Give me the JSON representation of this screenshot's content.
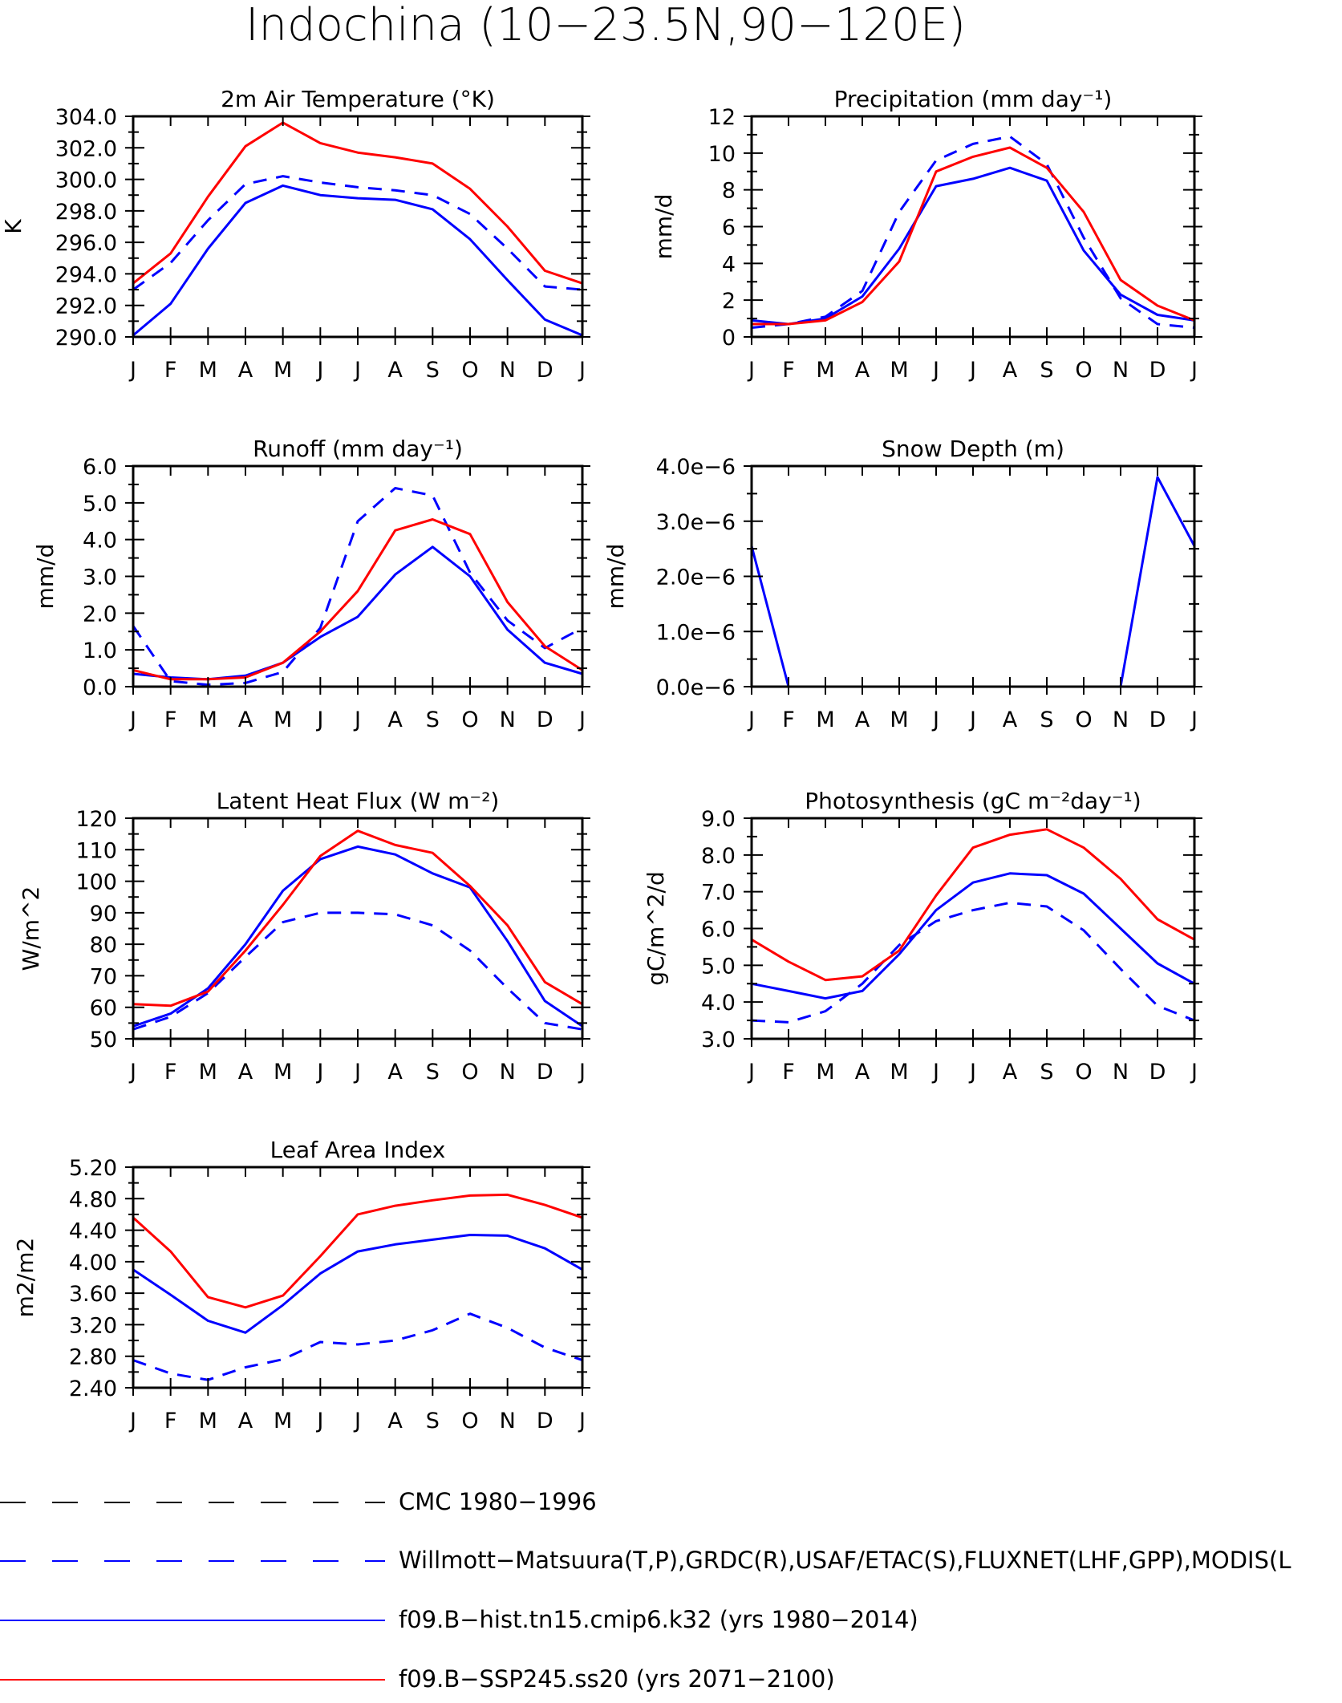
{
  "figure": {
    "title": "Indochina (10−23.5N,90−120E)"
  },
  "colors": {
    "axis": "#000000",
    "blue": "#0000ff",
    "red": "#ff0000",
    "black": "#000000"
  },
  "months": [
    "J",
    "F",
    "M",
    "A",
    "M",
    "J",
    "J",
    "A",
    "S",
    "O",
    "N",
    "D",
    "J"
  ],
  "legend": [
    {
      "label": "CMC 1980−1996",
      "color": "#000000",
      "dash": true
    },
    {
      "label": "Willmott−Matsuura(T,P),GRDC(R),USAF/ETAC(S),FLUXNET(LHF,GPP),MODIS(L",
      "color": "#0000ff",
      "dash": true
    },
    {
      "label": "f09.B−hist.tn15.cmip6.k32 (yrs 1980−2014)",
      "color": "#0000ff",
      "dash": false
    },
    {
      "label": "f09.B−SSP245.ss20 (yrs 2071−2100)",
      "color": "#ff0000",
      "dash": false
    }
  ],
  "chart_data": [
    {
      "type": "line",
      "title": "2m Air Temperature (°K)",
      "ylabel": "K",
      "ylim": [
        290,
        304
      ],
      "yticks": [
        290,
        292,
        294,
        296,
        298,
        300,
        302,
        304
      ],
      "ytick_labels": [
        "290.0",
        "292.0",
        "294.0",
        "296.0",
        "298.0",
        "300.0",
        "302.0",
        "304.0"
      ],
      "x": [
        "J",
        "F",
        "M",
        "A",
        "M",
        "J",
        "J",
        "A",
        "S",
        "O",
        "N",
        "D",
        "J"
      ],
      "series": [
        {
          "style": "blue-dash",
          "values": [
            293.0,
            294.7,
            297.4,
            299.7,
            300.2,
            299.8,
            299.5,
            299.3,
            299.0,
            297.8,
            295.6,
            293.2,
            293.0
          ]
        },
        {
          "style": "blue-solid",
          "values": [
            290.1,
            292.1,
            295.6,
            298.5,
            299.6,
            299.0,
            298.8,
            298.7,
            298.1,
            296.2,
            293.6,
            291.1,
            290.1
          ]
        },
        {
          "style": "red-solid",
          "values": [
            293.4,
            295.3,
            298.9,
            302.1,
            303.6,
            302.3,
            301.7,
            301.4,
            301.0,
            299.4,
            297.0,
            294.2,
            293.4
          ]
        }
      ]
    },
    {
      "type": "line",
      "title": "Precipitation (mm day⁻¹)",
      "ylabel": "mm/d",
      "ylim": [
        0,
        12
      ],
      "yticks": [
        0,
        2,
        4,
        6,
        8,
        10,
        12
      ],
      "ytick_labels": [
        "0",
        "2",
        "4",
        "6",
        "8",
        "10",
        "12"
      ],
      "x": [
        "J",
        "F",
        "M",
        "A",
        "M",
        "J",
        "J",
        "A",
        "S",
        "O",
        "N",
        "D",
        "J"
      ],
      "series": [
        {
          "style": "blue-dash",
          "values": [
            0.5,
            0.7,
            1.1,
            2.5,
            6.8,
            9.6,
            10.5,
            10.9,
            9.4,
            5.4,
            2.1,
            0.7,
            0.5
          ]
        },
        {
          "style": "blue-solid",
          "values": [
            0.9,
            0.7,
            1.0,
            2.2,
            4.8,
            8.2,
            8.6,
            9.2,
            8.5,
            4.7,
            2.3,
            1.2,
            0.9
          ]
        },
        {
          "style": "red-solid",
          "values": [
            0.7,
            0.7,
            0.9,
            1.9,
            4.1,
            9.0,
            9.8,
            10.3,
            9.2,
            6.8,
            3.1,
            1.7,
            0.9
          ]
        }
      ]
    },
    {
      "type": "line",
      "title": "Runoff (mm day⁻¹)",
      "ylabel": "mm/d",
      "ylim": [
        0,
        6
      ],
      "yticks": [
        0,
        1,
        2,
        3,
        4,
        5,
        6
      ],
      "ytick_labels": [
        "0.0",
        "1.0",
        "2.0",
        "3.0",
        "4.0",
        "5.0",
        "6.0"
      ],
      "x": [
        "J",
        "F",
        "M",
        "A",
        "M",
        "J",
        "J",
        "A",
        "S",
        "O",
        "N",
        "D",
        "J"
      ],
      "series": [
        {
          "style": "blue-dash",
          "values": [
            1.65,
            0.15,
            0.05,
            0.1,
            0.4,
            1.6,
            4.5,
            5.4,
            5.2,
            3.1,
            1.8,
            1.05,
            1.6
          ]
        },
        {
          "style": "blue-solid",
          "values": [
            0.35,
            0.25,
            0.2,
            0.3,
            0.65,
            1.35,
            1.9,
            3.05,
            3.8,
            3.0,
            1.55,
            0.65,
            0.35
          ]
        },
        {
          "style": "red-solid",
          "values": [
            0.45,
            0.2,
            0.2,
            0.25,
            0.65,
            1.5,
            2.6,
            4.25,
            4.55,
            4.15,
            2.3,
            1.1,
            0.45
          ]
        }
      ]
    },
    {
      "type": "line",
      "title": "Snow Depth (m)",
      "ylabel": "mm/d",
      "ylim": [
        0,
        4e-06
      ],
      "yticks": [
        0,
        1e-06,
        2e-06,
        3e-06,
        4e-06
      ],
      "ytick_labels": [
        "0.0e−6",
        "1.0e−6",
        "2.0e−6",
        "3.0e−6",
        "4.0e−6"
      ],
      "x": [
        "J",
        "F",
        "M",
        "A",
        "M",
        "J",
        "J",
        "A",
        "S",
        "O",
        "N",
        "D",
        "J"
      ],
      "series": [
        {
          "style": "red-solid",
          "values": [
            0,
            0,
            0,
            0,
            0,
            0,
            0,
            0,
            0,
            0,
            0,
            0,
            0
          ]
        },
        {
          "style": "blue-solid",
          "values": [
            2.55e-06,
            0,
            0,
            0,
            0,
            0,
            0,
            0,
            0,
            0,
            0,
            3.8e-06,
            2.55e-06
          ]
        }
      ]
    },
    {
      "type": "line",
      "title": "Latent Heat Flux (W m⁻²)",
      "ylabel": "W/m^2",
      "ylim": [
        50,
        120
      ],
      "yticks": [
        50,
        60,
        70,
        80,
        90,
        100,
        110,
        120
      ],
      "ytick_labels": [
        "50",
        "60",
        "70",
        "80",
        "90",
        "100",
        "110",
        "120"
      ],
      "x": [
        "J",
        "F",
        "M",
        "A",
        "M",
        "J",
        "J",
        "A",
        "S",
        "O",
        "N",
        "D",
        "J"
      ],
      "series": [
        {
          "style": "blue-dash",
          "values": [
            53,
            57,
            64.5,
            76,
            87,
            90,
            90,
            89.5,
            86,
            78,
            66,
            55,
            53
          ]
        },
        {
          "style": "blue-solid",
          "values": [
            54,
            58,
            66,
            80,
            97,
            107,
            111,
            108.5,
            102.5,
            98,
            81,
            62,
            54
          ]
        },
        {
          "style": "red-solid",
          "values": [
            61,
            60.5,
            65,
            78,
            92.5,
            108,
            116,
            111.5,
            109,
            98.5,
            86,
            68,
            61
          ]
        }
      ]
    },
    {
      "type": "line",
      "title": "Photosynthesis (gC m⁻²day⁻¹)",
      "ylabel": "gC/m^2/d",
      "ylim": [
        3,
        9
      ],
      "yticks": [
        3,
        4,
        5,
        6,
        7,
        8,
        9
      ],
      "ytick_labels": [
        "3.0",
        "4.0",
        "5.0",
        "6.0",
        "7.0",
        "8.0",
        "9.0"
      ],
      "x": [
        "J",
        "F",
        "M",
        "A",
        "M",
        "J",
        "J",
        "A",
        "S",
        "O",
        "N",
        "D",
        "J"
      ],
      "series": [
        {
          "style": "blue-dash",
          "values": [
            3.5,
            3.45,
            3.75,
            4.5,
            5.55,
            6.2,
            6.5,
            6.7,
            6.6,
            5.95,
            4.9,
            3.9,
            3.5
          ]
        },
        {
          "style": "blue-solid",
          "values": [
            4.5,
            4.3,
            4.1,
            4.3,
            5.3,
            6.5,
            7.25,
            7.5,
            7.45,
            6.95,
            6.0,
            5.05,
            4.5
          ]
        },
        {
          "style": "red-solid",
          "values": [
            5.7,
            5.1,
            4.6,
            4.7,
            5.4,
            6.9,
            8.2,
            8.55,
            8.7,
            8.2,
            7.35,
            6.25,
            5.7
          ]
        }
      ]
    },
    {
      "type": "line",
      "title": "Leaf Area Index",
      "ylabel": "m2/m2",
      "ylim": [
        2.4,
        5.2
      ],
      "yticks": [
        2.4,
        2.8,
        3.2,
        3.6,
        4.0,
        4.4,
        4.8,
        5.2
      ],
      "ytick_labels": [
        "2.40",
        "2.80",
        "3.20",
        "3.60",
        "4.00",
        "4.40",
        "4.80",
        "5.20"
      ],
      "x": [
        "J",
        "F",
        "M",
        "A",
        "M",
        "J",
        "J",
        "A",
        "S",
        "O",
        "N",
        "D",
        "J"
      ],
      "series": [
        {
          "style": "blue-dash",
          "values": [
            2.75,
            2.58,
            2.5,
            2.66,
            2.76,
            2.98,
            2.95,
            3.0,
            3.13,
            3.34,
            3.16,
            2.91,
            2.75
          ]
        },
        {
          "style": "blue-solid",
          "values": [
            3.9,
            3.58,
            3.25,
            3.1,
            3.45,
            3.85,
            4.13,
            4.22,
            4.28,
            4.34,
            4.33,
            4.17,
            3.9
          ]
        },
        {
          "style": "red-solid",
          "values": [
            4.56,
            4.13,
            3.55,
            3.42,
            3.57,
            4.07,
            4.6,
            4.71,
            4.78,
            4.84,
            4.85,
            4.72,
            4.56
          ]
        }
      ]
    }
  ]
}
